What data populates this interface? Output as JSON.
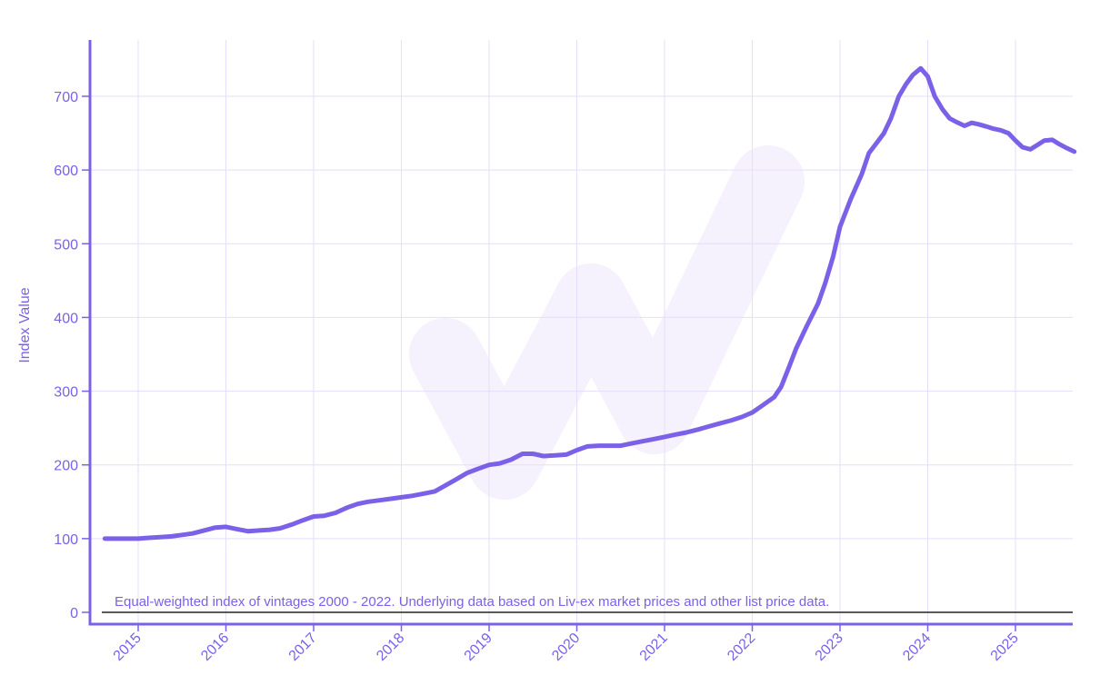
{
  "chart_data": {
    "type": "line",
    "ylabel": "Index Value",
    "xlabel": "",
    "ylim": [
      0,
      760
    ],
    "yticks": [
      0,
      100,
      200,
      300,
      400,
      500,
      600,
      700
    ],
    "xticks": [
      "2015",
      "2016",
      "2017",
      "2018",
      "2019",
      "2020",
      "2021",
      "2022",
      "2023",
      "2024",
      "2025"
    ],
    "xlim": [
      2014.6,
      2025.67
    ],
    "grid": true,
    "note": "Equal-weighted index of vintages 2000 - 2022. Underlying data based on Liv-ex market prices and other list price data.",
    "colors": {
      "line": "#7b61e8",
      "grid": "#e6defa",
      "axis": "#7b61e8",
      "baseline": "#222222",
      "watermark": "#f5f1fd"
    },
    "series": [
      {
        "x": [
          2014.62,
          2014.75,
          2014.88,
          2015.0,
          2015.12,
          2015.25,
          2015.38,
          2015.5,
          2015.62,
          2015.75,
          2015.88,
          2016.0,
          2016.12,
          2016.25,
          2016.38,
          2016.5,
          2016.62,
          2016.75,
          2016.88,
          2017.0,
          2017.12,
          2017.25,
          2017.38,
          2017.5,
          2017.62,
          2017.75,
          2017.88,
          2018.0,
          2018.12,
          2018.25,
          2018.38,
          2018.5,
          2018.62,
          2018.75,
          2018.88,
          2019.0,
          2019.12,
          2019.25,
          2019.38,
          2019.5,
          2019.62,
          2019.75,
          2019.88,
          2020.0,
          2020.12,
          2020.25,
          2020.38,
          2020.5,
          2020.62,
          2020.75,
          2020.88,
          2021.0,
          2021.12,
          2021.25,
          2021.38,
          2021.5,
          2021.62,
          2021.75,
          2021.88,
          2022.0,
          2022.12,
          2022.25,
          2022.33,
          2022.42,
          2022.5,
          2022.62,
          2022.75,
          2022.83,
          2022.92,
          2023.0,
          2023.12,
          2023.25,
          2023.33,
          2023.42,
          2023.5,
          2023.58,
          2023.67,
          2023.75,
          2023.83,
          2023.92,
          2024.0,
          2024.08,
          2024.17,
          2024.25,
          2024.33,
          2024.42,
          2024.5,
          2024.58,
          2024.67,
          2024.75,
          2024.83,
          2024.92,
          2025.0,
          2025.08,
          2025.17,
          2025.25,
          2025.33,
          2025.42,
          2025.5,
          2025.58,
          2025.67
        ],
        "values": [
          100,
          100,
          100,
          100,
          101,
          102,
          103,
          105,
          107,
          111,
          115,
          116,
          113,
          110,
          111,
          112,
          114,
          119,
          125,
          130,
          131,
          135,
          142,
          147,
          150,
          152,
          154,
          156,
          158,
          161,
          164,
          172,
          180,
          189,
          195,
          200,
          202,
          207,
          215,
          215,
          212,
          213,
          214,
          220,
          225,
          226,
          226,
          226,
          229,
          232,
          235,
          238,
          241,
          244,
          248,
          252,
          256,
          260,
          265,
          271,
          281,
          292,
          306,
          333,
          358,
          388,
          419,
          446,
          482,
          523,
          560,
          595,
          623,
          637,
          650,
          670,
          700,
          716,
          729,
          738,
          727,
          700,
          682,
          670,
          665,
          660,
          664,
          662,
          659,
          656,
          654,
          650,
          640,
          631,
          628,
          634,
          640,
          641,
          635,
          630,
          625
        ]
      }
    ]
  }
}
